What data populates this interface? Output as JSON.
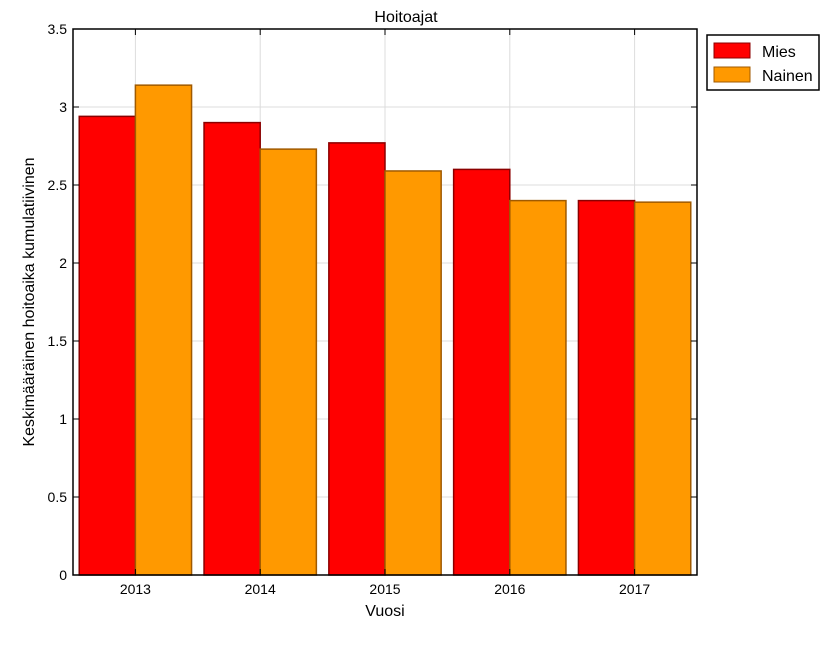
{
  "chart_data": {
    "type": "bar",
    "title": "Hoitoajat",
    "xlabel": "Vuosi",
    "ylabel": "Keskimääräinen hoitoaika kumulatiivinen",
    "categories": [
      "2013",
      "2014",
      "2015",
      "2016",
      "2017"
    ],
    "ylim": [
      0,
      3.5
    ],
    "yticks": [
      0,
      0.5,
      1,
      1.5,
      2,
      2.5,
      3,
      3.5
    ],
    "ytick_labels": [
      "0",
      "0.5",
      "1",
      "1.5",
      "2",
      "2.5",
      "3",
      "3.5"
    ],
    "grid": true,
    "legend_position": "top-right",
    "series": [
      {
        "name": "Mies",
        "color": "#ff0000",
        "edge": "#8b0000",
        "values": [
          2.94,
          2.9,
          2.77,
          2.6,
          2.4
        ]
      },
      {
        "name": "Nainen",
        "color": "#ff9900",
        "edge": "#a05a00",
        "values": [
          3.14,
          2.73,
          2.59,
          2.4,
          2.39
        ]
      }
    ]
  }
}
